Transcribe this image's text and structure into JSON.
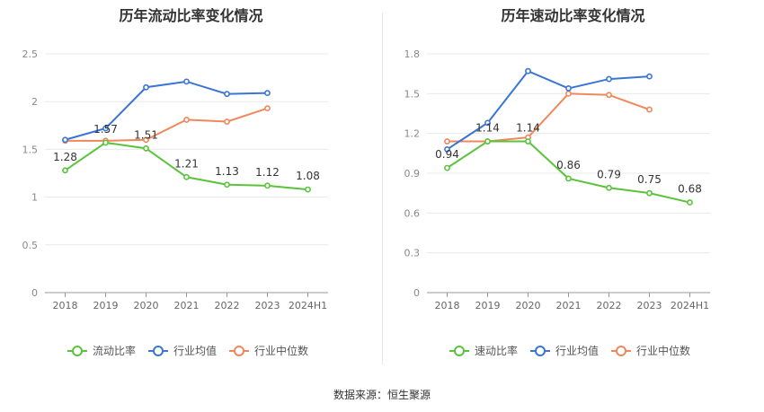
{
  "source": "数据来源：恒生聚源",
  "chart_data": [
    {
      "type": "line",
      "title": "历年流动比率变化情况",
      "categories": [
        "2018",
        "2019",
        "2020",
        "2021",
        "2022",
        "2023",
        "2024H1"
      ],
      "ylim": [
        0,
        2.5
      ],
      "yticks": [
        "0",
        "0.5",
        "1",
        "1.5",
        "2",
        "2.5"
      ],
      "grid": true,
      "legend_position": "bottom",
      "series": [
        {
          "name": "流动比率",
          "color": "#5ac33c",
          "values": [
            1.28,
            1.57,
            1.51,
            1.21,
            1.13,
            1.12,
            1.08
          ],
          "labels": [
            "1.28",
            "1.57",
            "1.51",
            "1.21",
            "1.13",
            "1.12",
            "1.08"
          ]
        },
        {
          "name": "行业均值",
          "color": "#3a75d6",
          "values": [
            1.6,
            1.72,
            2.15,
            2.21,
            2.08,
            2.09,
            null
          ]
        },
        {
          "name": "行业中位数",
          "color": "#f0875a",
          "values": [
            1.59,
            1.59,
            1.6,
            1.81,
            1.79,
            1.93,
            null
          ]
        }
      ]
    },
    {
      "type": "line",
      "title": "历年速动比率变化情况",
      "categories": [
        "2018",
        "2019",
        "2020",
        "2021",
        "2022",
        "2023",
        "2024H1"
      ],
      "ylim": [
        0,
        1.8
      ],
      "yticks": [
        "0",
        "0.3",
        "0.6",
        "0.9",
        "1.2",
        "1.5",
        "1.8"
      ],
      "grid": true,
      "legend_position": "bottom",
      "series": [
        {
          "name": "速动比率",
          "color": "#5ac33c",
          "values": [
            0.94,
            1.14,
            1.14,
            0.86,
            0.79,
            0.75,
            0.68
          ],
          "labels": [
            "0.94",
            "1.14",
            "1.14",
            "0.86",
            "0.79",
            "0.75",
            "0.68"
          ]
        },
        {
          "name": "行业均值",
          "color": "#3a75d6",
          "values": [
            1.08,
            1.28,
            1.67,
            1.54,
            1.61,
            1.63,
            null
          ]
        },
        {
          "name": "行业中位数",
          "color": "#f0875a",
          "values": [
            1.14,
            1.14,
            1.17,
            1.5,
            1.49,
            1.38,
            null
          ]
        }
      ]
    }
  ]
}
